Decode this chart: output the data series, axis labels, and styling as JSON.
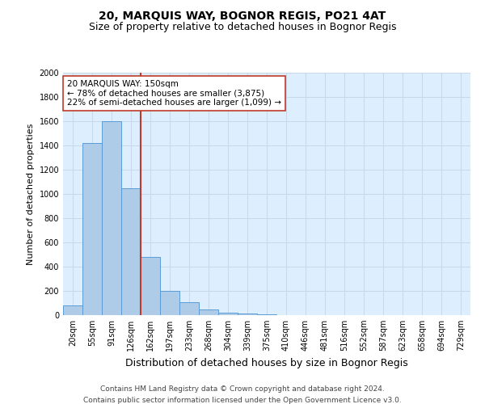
{
  "title": "20, MARQUIS WAY, BOGNOR REGIS, PO21 4AT",
  "subtitle": "Size of property relative to detached houses in Bognor Regis",
  "xlabel": "Distribution of detached houses by size in Bognor Regis",
  "ylabel": "Number of detached properties",
  "categories": [
    "20sqm",
    "55sqm",
    "91sqm",
    "126sqm",
    "162sqm",
    "197sqm",
    "233sqm",
    "268sqm",
    "304sqm",
    "339sqm",
    "375sqm",
    "410sqm",
    "446sqm",
    "481sqm",
    "516sqm",
    "552sqm",
    "587sqm",
    "623sqm",
    "658sqm",
    "694sqm",
    "729sqm"
  ],
  "values": [
    80,
    1420,
    1600,
    1050,
    480,
    200,
    105,
    45,
    22,
    12,
    10,
    0,
    0,
    0,
    0,
    0,
    0,
    0,
    0,
    0,
    0
  ],
  "bar_color": "#aecce8",
  "bar_edge_color": "#5b9bd5",
  "vline_color": "#c0392b",
  "vline_x_index": 3.5,
  "annotation_text": "20 MARQUIS WAY: 150sqm\n← 78% of detached houses are smaller (3,875)\n22% of semi-detached houses are larger (1,099) →",
  "annotation_box_color": "#ffffff",
  "annotation_box_edge": "#c0392b",
  "ylim": [
    0,
    2000
  ],
  "yticks": [
    0,
    200,
    400,
    600,
    800,
    1000,
    1200,
    1400,
    1600,
    1800,
    2000
  ],
  "grid_color": "#c8d8e8",
  "bg_color": "#ddeeff",
  "footer1": "Contains HM Land Registry data © Crown copyright and database right 2024.",
  "footer2": "Contains public sector information licensed under the Open Government Licence v3.0.",
  "title_fontsize": 10,
  "subtitle_fontsize": 9,
  "xlabel_fontsize": 9,
  "ylabel_fontsize": 8,
  "tick_fontsize": 7,
  "annotation_fontsize": 7.5,
  "footer_fontsize": 6.5
}
